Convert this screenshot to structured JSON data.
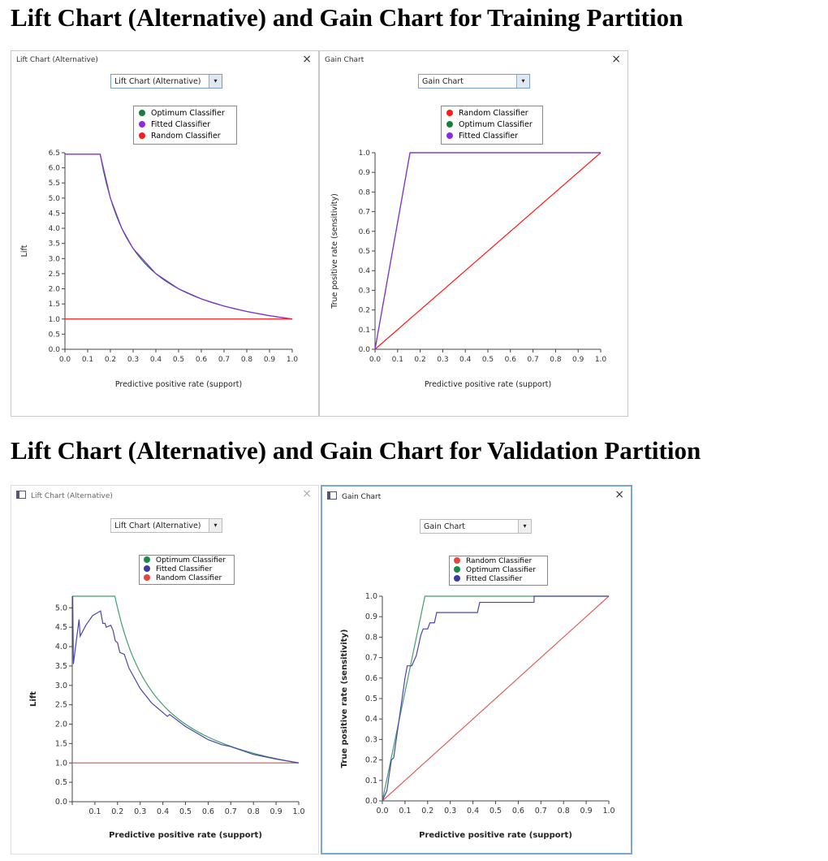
{
  "headings": [
    "Lift Chart (Alternative) and Gain Chart for Training Partition",
    "Lift Chart (Alternative) and Gain Chart for Validation Partition"
  ],
  "panels": [
    {
      "title": "Lift Chart (Alternative)",
      "close": "×",
      "select": "Lift Chart (Alternative)",
      "arrow": "▾",
      "legend": [
        "Optimum Classifier",
        "Fitted Classifier",
        "Random Classifier"
      ]
    },
    {
      "title": "Gain Chart",
      "close": "×",
      "select": "Gain Chart",
      "arrow": "▾",
      "legend": [
        "Random Classifier",
        "Optimum Classifier",
        "Fitted Classifier"
      ]
    },
    {
      "title": "Lift Chart (Alternative)",
      "close": "×",
      "select": "Lift Chart (Alternative)",
      "arrow": "▾",
      "legend": [
        "Optimum Classifier",
        "Fitted Classifier",
        "Random Classifier"
      ]
    },
    {
      "title": "Gain Chart",
      "close": "×",
      "select": "Gain Chart",
      "arrow": "▾",
      "legend": [
        "Random Classifier",
        "Optimum Classifier",
        "Fitted Classifier"
      ]
    }
  ],
  "colors": {
    "train_optimum": "#1b7d3c",
    "train_fitted": "#8a2be2",
    "train_random": "#ff1a1a",
    "val_optimum": "#3f9f6f",
    "val_fitted": "#4b47a8",
    "val_random": "#e0605a"
  },
  "chart_data": [
    {
      "type": "line",
      "title": "Lift Chart (Alternative) - Training",
      "xlabel": "Predictive positive rate (support)",
      "ylabel": "Lift",
      "xlim": [
        0,
        1
      ],
      "ylim": [
        0,
        6.5
      ],
      "xticks": [
        "0.0",
        "0.1",
        "0.2",
        "0.3",
        "0.4",
        "0.5",
        "0.6",
        "0.7",
        "0.8",
        "0.9",
        "1.0"
      ],
      "yticks": [
        "0.0",
        "0.5",
        "1.0",
        "1.5",
        "2.0",
        "2.5",
        "3.0",
        "3.5",
        "4.0",
        "4.5",
        "5.0",
        "5.5",
        "6.0",
        "6.5"
      ],
      "series": [
        {
          "name": "Optimum Classifier",
          "color_key": "train_optimum",
          "points": [
            [
              0,
              6.45
            ],
            [
              0.155,
              6.45
            ],
            [
              0.2,
              5
            ],
            [
              0.25,
              4
            ],
            [
              0.3,
              3.33
            ],
            [
              0.4,
              2.5
            ],
            [
              0.5,
              2
            ],
            [
              0.6,
              1.667
            ],
            [
              0.7,
              1.429
            ],
            [
              0.8,
              1.25
            ],
            [
              0.9,
              1.111
            ],
            [
              1,
              1
            ]
          ]
        },
        {
          "name": "Fitted Classifier",
          "color_key": "train_fitted",
          "points": [
            [
              0,
              6.45
            ],
            [
              0.155,
              6.45
            ],
            [
              0.2,
              5
            ],
            [
              0.25,
              4
            ],
            [
              0.3,
              3.33
            ],
            [
              0.4,
              2.5
            ],
            [
              0.5,
              2
            ],
            [
              0.6,
              1.667
            ],
            [
              0.7,
              1.429
            ],
            [
              0.8,
              1.25
            ],
            [
              0.9,
              1.111
            ],
            [
              1,
              1
            ]
          ]
        },
        {
          "name": "Random Classifier",
          "color_key": "train_random",
          "points": [
            [
              0,
              1
            ],
            [
              1,
              1
            ]
          ]
        }
      ]
    },
    {
      "type": "line",
      "title": "Gain Chart - Training",
      "xlabel": "Predictive positive rate (support)",
      "ylabel": "True positive rate (sensitivity)",
      "xlim": [
        0,
        1
      ],
      "ylim": [
        0,
        1
      ],
      "xticks": [
        "0.0",
        "0.1",
        "0.2",
        "0.3",
        "0.4",
        "0.5",
        "0.6",
        "0.7",
        "0.8",
        "0.9",
        "1.0"
      ],
      "yticks": [
        "0.0",
        "0.1",
        "0.2",
        "0.3",
        "0.4",
        "0.5",
        "0.6",
        "0.7",
        "0.8",
        "0.9",
        "1.0"
      ],
      "series": [
        {
          "name": "Random Classifier",
          "color_key": "train_random",
          "points": [
            [
              0,
              0
            ],
            [
              1,
              1
            ]
          ]
        },
        {
          "name": "Optimum Classifier",
          "color_key": "train_optimum",
          "points": [
            [
              0,
              0
            ],
            [
              0.155,
              1
            ],
            [
              1,
              1
            ]
          ]
        },
        {
          "name": "Fitted Classifier",
          "color_key": "train_fitted",
          "points": [
            [
              0,
              0
            ],
            [
              0.155,
              1
            ],
            [
              1,
              1
            ]
          ]
        }
      ]
    },
    {
      "type": "line",
      "title": "Lift Chart (Alternative) - Validation",
      "xlabel": "Predictive positive rate (support)",
      "ylabel": "Lift",
      "xlim": [
        0,
        1
      ],
      "ylim": [
        0,
        5.3
      ],
      "xticks": [
        "",
        "0.1",
        "0.2",
        "0.3",
        "0.4",
        "0.5",
        "0.6",
        "0.7",
        "0.8",
        "0.9",
        "1.0"
      ],
      "yticks": [
        "0.0",
        "0.5",
        "1.0",
        "1.5",
        "2.0",
        "2.5",
        "3.0",
        "3.5",
        "4.0",
        "4.5",
        "5.0"
      ],
      "series": [
        {
          "name": "Random Classifier",
          "color_key": "val_random",
          "points": [
            [
              0,
              1
            ],
            [
              1,
              1
            ]
          ]
        },
        {
          "name": "Optimum Classifier",
          "color_key": "val_optimum",
          "points": [
            [
              0,
              5.3
            ],
            [
              0.188,
              5.3
            ],
            [
              0.25,
              4
            ],
            [
              0.3,
              3.33
            ],
            [
              0.4,
              2.5
            ],
            [
              0.5,
              2
            ],
            [
              0.6,
              1.667
            ],
            [
              0.7,
              1.429
            ],
            [
              0.8,
              1.25
            ],
            [
              0.9,
              1.111
            ],
            [
              1,
              1
            ]
          ]
        },
        {
          "name": "Fitted Classifier",
          "color_key": "val_fitted",
          "points": [
            [
              0.002,
              5.3
            ],
            [
              0.005,
              3.55
            ],
            [
              0.03,
              4.7
            ],
            [
              0.035,
              4.27
            ],
            [
              0.06,
              4.55
            ],
            [
              0.09,
              4.8
            ],
            [
              0.125,
              4.92
            ],
            [
              0.135,
              4.6
            ],
            [
              0.145,
              4.6
            ],
            [
              0.15,
              4.5
            ],
            [
              0.17,
              4.55
            ],
            [
              0.18,
              4.42
            ],
            [
              0.19,
              4.15
            ],
            [
              0.2,
              4.1
            ],
            [
              0.21,
              3.85
            ],
            [
              0.23,
              3.8
            ],
            [
              0.25,
              3.45
            ],
            [
              0.3,
              2.92
            ],
            [
              0.35,
              2.55
            ],
            [
              0.42,
              2.2
            ],
            [
              0.43,
              2.25
            ],
            [
              0.5,
              1.94
            ],
            [
              0.6,
              1.6
            ],
            [
              0.66,
              1.47
            ],
            [
              0.7,
              1.42
            ],
            [
              0.8,
              1.22
            ],
            [
              0.9,
              1.1
            ],
            [
              1,
              1
            ]
          ]
        }
      ]
    },
    {
      "type": "line",
      "title": "Gain Chart - Validation",
      "xlabel": "Predictive positive rate (support)",
      "ylabel": "True positive rate (sensitivity)",
      "xlim": [
        0,
        1
      ],
      "ylim": [
        0,
        1
      ],
      "xticks": [
        "0.0",
        "0.1",
        "0.2",
        "0.3",
        "0.4",
        "0.5",
        "0.6",
        "0.7",
        "0.8",
        "0.9",
        "1.0"
      ],
      "yticks": [
        "0.0",
        "0.1",
        "0.2",
        "0.3",
        "0.4",
        "0.5",
        "0.6",
        "0.7",
        "0.8",
        "0.9",
        "1.0"
      ],
      "series": [
        {
          "name": "Random Classifier",
          "color_key": "val_random",
          "points": [
            [
              0,
              0
            ],
            [
              1,
              1
            ]
          ]
        },
        {
          "name": "Optimum Classifier",
          "color_key": "val_optimum",
          "points": [
            [
              0,
              0
            ],
            [
              0.188,
              1
            ],
            [
              1,
              1
            ]
          ]
        },
        {
          "name": "Fitted Classifier",
          "color_key": "val_fitted",
          "points": [
            [
              0,
              0
            ],
            [
              0.02,
              0.05
            ],
            [
              0.04,
              0.2
            ],
            [
              0.05,
              0.21
            ],
            [
              0.1,
              0.6
            ],
            [
              0.11,
              0.66
            ],
            [
              0.13,
              0.66
            ],
            [
              0.15,
              0.71
            ],
            [
              0.17,
              0.81
            ],
            [
              0.18,
              0.84
            ],
            [
              0.2,
              0.84
            ],
            [
              0.21,
              0.87
            ],
            [
              0.23,
              0.87
            ],
            [
              0.24,
              0.92
            ],
            [
              0.42,
              0.92
            ],
            [
              0.43,
              0.97
            ],
            [
              0.67,
              0.97
            ],
            [
              0.67,
              1
            ],
            [
              1,
              1
            ]
          ]
        }
      ]
    }
  ]
}
